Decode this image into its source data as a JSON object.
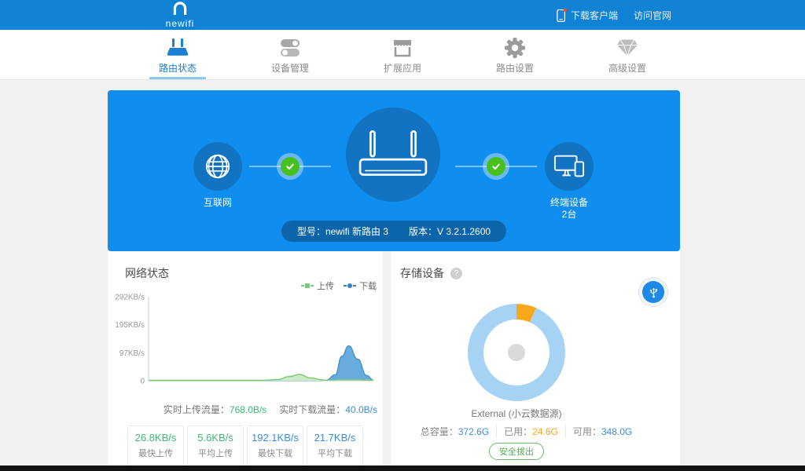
{
  "topbar": {
    "logo_text": "newifi",
    "links": [
      {
        "label": "下载客户端",
        "icon": "phone-icon",
        "has_badge": true
      },
      {
        "label": "访问官网"
      }
    ]
  },
  "nav": {
    "tabs": [
      {
        "label": "路由状态",
        "icon": "router-icon",
        "active": true
      },
      {
        "label": "设备管理",
        "icon": "toggles-icon",
        "active": false
      },
      {
        "label": "扩展应用",
        "icon": "store-icon",
        "active": false
      },
      {
        "label": "路由设置",
        "icon": "gear-icon",
        "active": false
      },
      {
        "label": "高级设置",
        "icon": "diamond-icon",
        "active": false
      }
    ]
  },
  "hero": {
    "nodes": [
      {
        "label": "互联网",
        "icon": "globe-icon"
      },
      {
        "label": "终端设备",
        "sublabel": "2台",
        "icon": "devices-icon"
      }
    ],
    "connection_status": "connected",
    "model_label": "型号：newifi 新路由 3",
    "version_label": "版本：V 3.2.1.2600"
  },
  "network": {
    "title": "网络状态",
    "legend": [
      {
        "label": "上传",
        "color": "#7fc97f",
        "marker": "square"
      },
      {
        "label": "下载",
        "color": "#3f7fc1",
        "marker": "dot"
      }
    ],
    "realtime": [
      {
        "label": "实时上传流量：",
        "value": "768.0B/s",
        "color": "#3cb874"
      },
      {
        "label": "实时下载流量：",
        "value": "40.0B/s",
        "color": "#3a8ed8"
      }
    ],
    "stats": [
      {
        "value": "26.8KB/s",
        "label": "最快上传",
        "color": "#3cb874"
      },
      {
        "value": "5.6KB/s",
        "label": "平均上传",
        "color": "#3cb874"
      },
      {
        "value": "192.1KB/s",
        "label": "最快下载",
        "color": "#3a8ed8"
      },
      {
        "value": "21.7KB/s",
        "label": "平均下载",
        "color": "#3a8ed8"
      }
    ]
  },
  "storage": {
    "title": "存储设备",
    "device_label": "External (小云数据源)",
    "capacity": [
      {
        "label": "总容量：",
        "value": "372.6G",
        "color": "#3a8ed8"
      },
      {
        "label": "已用：",
        "value": "24.6G",
        "color": "#f5a623"
      },
      {
        "label": "可用：",
        "value": "348.0G",
        "color": "#3a8ed8"
      }
    ],
    "eject_label": "安全拔出"
  },
  "chart_data": [
    {
      "type": "area",
      "title": "网络状态",
      "xlabel": "",
      "ylabel": "",
      "ylim": [
        0,
        292
      ],
      "yticks": [
        {
          "value": 292,
          "label": "292KB/s"
        },
        {
          "value": 195,
          "label": "195KB/s"
        },
        {
          "value": 97,
          "label": "97KB/s"
        },
        {
          "value": 0,
          "label": "0"
        }
      ],
      "x_unit": "percent_of_window",
      "legend_position": "top-right",
      "grid": false,
      "series": [
        {
          "name": "下载",
          "line_color": "#4a94cc",
          "fill_color": "#68abdd",
          "x": [
            0,
            74,
            79,
            83,
            86,
            89,
            93,
            97,
            100
          ],
          "y": [
            1,
            1,
            2,
            20,
            85,
            121,
            75,
            18,
            2
          ]
        },
        {
          "name": "上传",
          "line_color": "#7fc97f",
          "fill_color": "#cdeac2",
          "x": [
            0,
            50,
            57,
            63,
            67,
            72,
            78,
            85,
            93,
            100
          ],
          "y": [
            1,
            1,
            4,
            15,
            22,
            10,
            2,
            3,
            3,
            2
          ]
        }
      ]
    },
    {
      "type": "donut",
      "label": "External (小云数据源)",
      "total": 372.6,
      "unit": "G",
      "slices": [
        {
          "name": "已用",
          "value": 24.6,
          "color": "#f7a81b"
        },
        {
          "name": "可用",
          "value": 348.0,
          "color": "#a6d3f3"
        }
      ]
    }
  ]
}
